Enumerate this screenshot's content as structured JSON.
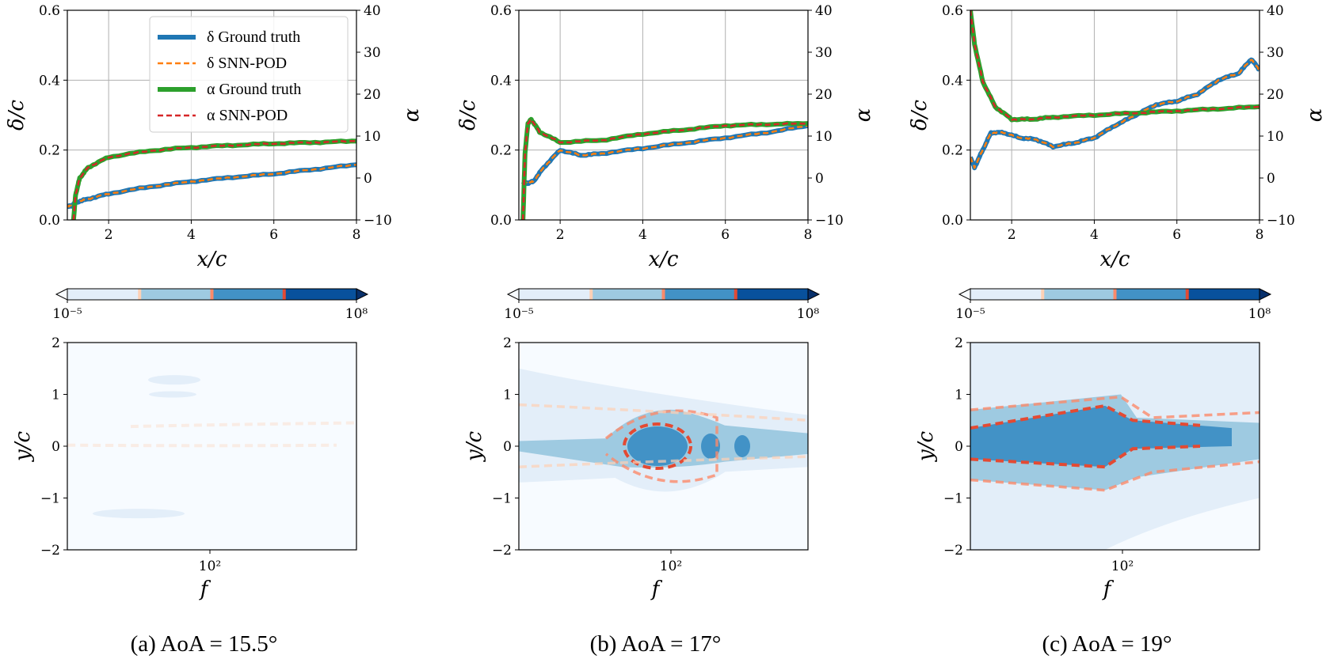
{
  "legend": [
    "δ Ground truth",
    "δ SNN-POD",
    "α Ground truth",
    "α SNN-POD"
  ],
  "colors": {
    "delta_gt": "#1f77b4",
    "delta_snn": "#ff7f0e",
    "alpha_gt": "#2ca02c",
    "alpha_snn": "#d62728",
    "cmap": [
      "#e3eef9",
      "#9ecae1",
      "#4292c6",
      "#08519c"
    ],
    "cmap_under": "#f7fbff",
    "cmap_over": "#08306b",
    "contour": [
      "#fdd0b5",
      "#fb8a6a",
      "#e34a33"
    ]
  },
  "colorbar": {
    "ticks": [
      "10⁻⁵",
      "10⁸"
    ]
  },
  "axis_labels": {
    "top_x": "x/c",
    "top_y_left": "δ/c",
    "top_y_right": "α",
    "bottom_x": "f",
    "bottom_y": "y/c"
  },
  "panels": [
    {
      "caption": "(a) AoA = 15.5°"
    },
    {
      "caption": "(b) AoA = 17°"
    },
    {
      "caption": "(c) AoA = 19°"
    }
  ],
  "chart_data": [
    {
      "type": "line",
      "panel": "a",
      "xlabel": "x/c",
      "ylabel": "δ/c",
      "y2label": "α",
      "xlim": [
        1,
        8
      ],
      "ylim": [
        0,
        0.6
      ],
      "y2lim": [
        -10,
        40
      ],
      "xticks": [
        2,
        4,
        6,
        8
      ],
      "yticks": [
        0.0,
        0.2,
        0.4,
        0.6
      ],
      "y2ticks": [
        -10,
        0,
        10,
        20,
        30,
        40
      ],
      "series": [
        {
          "name": "δ Ground truth",
          "axis": "left",
          "x": [
            1.0,
            1.1,
            1.2,
            1.5,
            2,
            3,
            4,
            5,
            6,
            7,
            8
          ],
          "y": [
            0.04,
            0.04,
            0.05,
            0.06,
            0.075,
            0.095,
            0.11,
            0.122,
            0.132,
            0.145,
            0.158
          ]
        },
        {
          "name": "δ SNN-POD",
          "axis": "left",
          "x": [
            1.0,
            1.1,
            1.2,
            1.5,
            2,
            3,
            4,
            5,
            6,
            7,
            8
          ],
          "y": [
            0.04,
            0.04,
            0.05,
            0.06,
            0.075,
            0.095,
            0.11,
            0.122,
            0.132,
            0.145,
            0.158
          ]
        },
        {
          "name": "α Ground truth",
          "axis": "right",
          "x": [
            1.15,
            1.2,
            1.3,
            1.5,
            2,
            3,
            4,
            5,
            6,
            7,
            8
          ],
          "y": [
            -10,
            -4,
            0,
            2.5,
            5,
            6.5,
            7.3,
            7.8,
            8.2,
            8.5,
            8.8
          ]
        },
        {
          "name": "α SNN-POD",
          "axis": "right",
          "x": [
            1.15,
            1.2,
            1.3,
            1.5,
            2,
            3,
            4,
            5,
            6,
            7,
            8
          ],
          "y": [
            -10,
            -4,
            0,
            2.5,
            5,
            6.5,
            7.3,
            7.8,
            8.2,
            8.5,
            8.8
          ]
        }
      ]
    },
    {
      "type": "line",
      "panel": "b",
      "xlabel": "x/c",
      "ylabel": "δ/c",
      "y2label": "α",
      "xlim": [
        1,
        8
      ],
      "ylim": [
        0,
        0.6
      ],
      "y2lim": [
        -10,
        40
      ],
      "xticks": [
        2,
        4,
        6,
        8
      ],
      "yticks": [
        0.0,
        0.2,
        0.4,
        0.6
      ],
      "y2ticks": [
        -10,
        0,
        10,
        20,
        30,
        40
      ],
      "series": [
        {
          "name": "δ Ground truth",
          "axis": "left",
          "x": [
            1.1,
            1.2,
            1.35,
            1.6,
            2,
            2.5,
            3,
            4,
            5,
            6,
            7,
            8
          ],
          "y": [
            0.11,
            0.105,
            0.11,
            0.15,
            0.2,
            0.185,
            0.19,
            0.205,
            0.22,
            0.235,
            0.25,
            0.27
          ]
        },
        {
          "name": "δ SNN-POD",
          "axis": "left",
          "x": [
            1.1,
            1.2,
            1.35,
            1.6,
            2,
            2.5,
            3,
            4,
            5,
            6,
            7,
            8
          ],
          "y": [
            0.11,
            0.105,
            0.11,
            0.15,
            0.2,
            0.185,
            0.19,
            0.205,
            0.22,
            0.235,
            0.25,
            0.27
          ]
        },
        {
          "name": "α Ground truth",
          "axis": "right",
          "x": [
            1.1,
            1.15,
            1.22,
            1.3,
            1.5,
            2,
            3,
            4,
            5,
            6,
            7,
            8
          ],
          "y": [
            -10,
            6,
            13,
            14,
            11,
            8.5,
            9,
            10.5,
            11.5,
            12.5,
            12.8,
            13
          ]
        },
        {
          "name": "α SNN-POD",
          "axis": "right",
          "x": [
            1.1,
            1.15,
            1.22,
            1.3,
            1.5,
            2,
            3,
            4,
            5,
            6,
            7,
            8
          ],
          "y": [
            -10,
            6,
            13,
            14,
            11,
            8.5,
            9,
            10.5,
            11.5,
            12.5,
            12.8,
            13
          ]
        }
      ]
    },
    {
      "type": "line",
      "panel": "c",
      "xlabel": "x/c",
      "ylabel": "δ/c",
      "y2label": "α",
      "xlim": [
        1,
        8
      ],
      "ylim": [
        0,
        0.6
      ],
      "y2lim": [
        -10,
        40
      ],
      "xticks": [
        2,
        4,
        6,
        8
      ],
      "yticks": [
        0.0,
        0.2,
        0.4,
        0.6
      ],
      "y2ticks": [
        -10,
        0,
        10,
        20,
        30,
        40
      ],
      "series": [
        {
          "name": "δ Ground truth",
          "axis": "left",
          "x": [
            1.0,
            1.1,
            1.3,
            1.5,
            1.8,
            2.2,
            2.6,
            3.0,
            3.5,
            4,
            4.5,
            5,
            5.5,
            6,
            6.5,
            7,
            7.5,
            7.8,
            8
          ],
          "y": [
            0.18,
            0.15,
            0.2,
            0.25,
            0.25,
            0.235,
            0.23,
            0.21,
            0.22,
            0.235,
            0.27,
            0.3,
            0.33,
            0.34,
            0.36,
            0.4,
            0.42,
            0.46,
            0.43
          ]
        },
        {
          "name": "δ SNN-POD",
          "axis": "left",
          "x": [
            1.0,
            1.1,
            1.3,
            1.5,
            1.8,
            2.2,
            2.6,
            3.0,
            3.5,
            4,
            4.5,
            5,
            5.5,
            6,
            6.5,
            7,
            7.5,
            7.8,
            8
          ],
          "y": [
            0.18,
            0.15,
            0.2,
            0.25,
            0.25,
            0.235,
            0.23,
            0.21,
            0.22,
            0.235,
            0.27,
            0.3,
            0.33,
            0.34,
            0.36,
            0.4,
            0.42,
            0.46,
            0.43
          ]
        },
        {
          "name": "α Ground truth",
          "axis": "right",
          "x": [
            1.0,
            1.1,
            1.3,
            1.6,
            2,
            2.5,
            3,
            4,
            5,
            6,
            7,
            8
          ],
          "y": [
            40,
            32,
            23,
            17,
            14,
            14,
            14.5,
            15,
            15.5,
            16,
            16.5,
            17
          ]
        },
        {
          "name": "α SNN-POD",
          "axis": "right",
          "x": [
            1.0,
            1.1,
            1.3,
            1.6,
            2,
            2.5,
            3,
            4,
            5,
            6,
            7,
            8
          ],
          "y": [
            40,
            32,
            23,
            17,
            14,
            14,
            14.5,
            15,
            15.5,
            16,
            16.5,
            17
          ]
        }
      ]
    },
    {
      "type": "heatmap",
      "panel": "a",
      "xlabel": "f",
      "ylabel": "y/c",
      "ylim": [
        -2,
        2
      ],
      "xscale": "log",
      "xticks": [
        "10²"
      ],
      "yticks": [
        -2,
        -1,
        0,
        1,
        2
      ],
      "colorbar": [
        "10⁻⁵",
        "10⁸"
      ]
    },
    {
      "type": "heatmap",
      "panel": "b",
      "xlabel": "f",
      "ylabel": "y/c",
      "ylim": [
        -2,
        2
      ],
      "xscale": "log",
      "xticks": [
        "10²"
      ],
      "yticks": [
        -2,
        -1,
        0,
        1,
        2
      ],
      "colorbar": [
        "10⁻⁵",
        "10⁸"
      ]
    },
    {
      "type": "heatmap",
      "panel": "c",
      "xlabel": "f",
      "ylabel": "y/c",
      "ylim": [
        -2,
        2
      ],
      "xscale": "log",
      "xticks": [
        "10²"
      ],
      "yticks": [
        -2,
        -1,
        0,
        1,
        2
      ],
      "colorbar": [
        "10⁻⁵",
        "10⁸"
      ]
    }
  ]
}
